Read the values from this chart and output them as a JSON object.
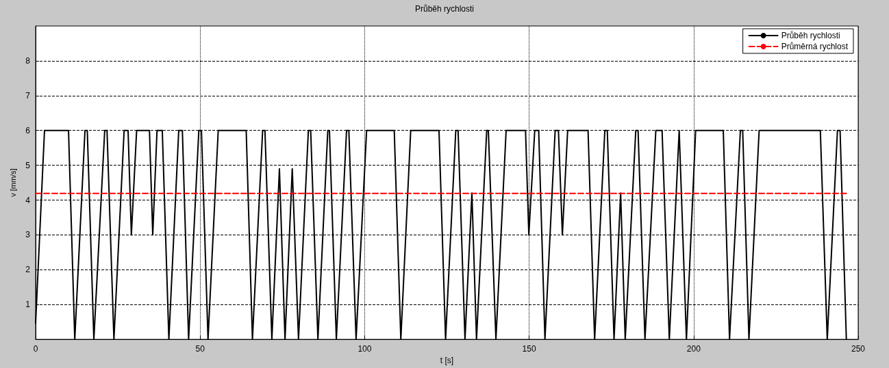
{
  "chart_data": {
    "type": "line",
    "title": "Průběh rychlosti",
    "xlabel": "t [s]",
    "ylabel": "v [mm/s]",
    "xlim": [
      0,
      250
    ],
    "xticks": [
      0,
      50,
      100,
      150,
      200,
      250
    ],
    "ylim": [
      0,
      9
    ],
    "yticks": [
      1,
      2,
      3,
      4,
      5,
      6,
      7,
      8
    ],
    "grid": true,
    "legend": "top right",
    "marker": "none",
    "series": [
      {
        "name": "Průběh rychlosti",
        "color": "#000000",
        "line_style": "solid",
        "x": [
          0,
          2.7,
          10,
          11.9,
          15,
          15.7,
          17.7,
          21,
          21.7,
          23.8,
          26.9,
          28.1,
          29.1,
          30.7,
          34.6,
          35.6,
          36.9,
          38.5,
          40.5,
          43.5,
          44.6,
          46.5,
          49.6,
          50.4,
          52.4,
          55.5,
          64,
          65.9,
          69,
          69.7,
          71.8,
          74.1,
          75.8,
          78,
          79.9,
          82.9,
          83.6,
          85.8,
          88.8,
          89.3,
          91.4,
          94.5,
          95.2,
          97.4,
          100.6,
          109,
          111,
          114,
          122.6,
          124.6,
          127.7,
          128.4,
          130.5,
          132.6,
          134,
          137.1,
          137.6,
          139.9,
          143,
          148.9,
          149.9,
          151.7,
          152.9,
          154.8,
          157.9,
          158.9,
          160.1,
          161.7,
          167.9,
          169.9,
          173,
          173.75,
          175.8,
          177.8,
          179.2,
          182.4,
          183.1,
          185.2,
          188.5,
          190.4,
          192.6,
          195.6,
          197.8,
          200.6,
          209,
          210.9,
          214.2,
          214.9,
          216.8,
          219.9,
          238.5,
          240.6,
          243.7,
          244.5,
          246.4
        ],
        "values": [
          0.46,
          6,
          6,
          0,
          6,
          6,
          0,
          6,
          6,
          0,
          6,
          6,
          3,
          6,
          6,
          3,
          6,
          6,
          0,
          6,
          6,
          0,
          6,
          6,
          0,
          6,
          6,
          0,
          6,
          6,
          0,
          4.9,
          0,
          4.9,
          0,
          6,
          6,
          0,
          6,
          6,
          0,
          6,
          6,
          0,
          6,
          6,
          0,
          6,
          6,
          0,
          6,
          6,
          0,
          4.2,
          0,
          6,
          6,
          0,
          6,
          6,
          3,
          6,
          6,
          0,
          6,
          6,
          3,
          6,
          6,
          0,
          6,
          6,
          0,
          4.2,
          0,
          6,
          6,
          0,
          6,
          6,
          0,
          6,
          0,
          6,
          6,
          0,
          6,
          6,
          0,
          6,
          6,
          0,
          6,
          6,
          0
        ]
      },
      {
        "name": "Průměrná rychlost",
        "color": "#ff0000",
        "line_style": "dashed",
        "x": [
          0,
          246.4
        ],
        "values": [
          4.19,
          4.19
        ]
      }
    ]
  }
}
